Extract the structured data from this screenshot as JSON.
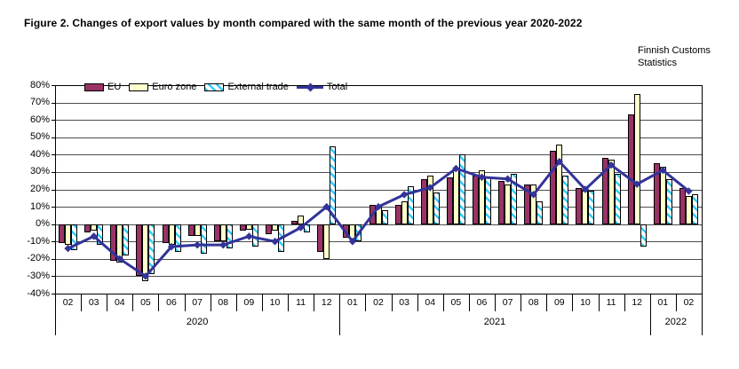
{
  "title": "Figure 2. Changes of export values by month compared with the same month of the previous year 2020-2022",
  "source": "Finnish Customs\nStatistics",
  "chart_data": {
    "type": "bar",
    "subtype": "grouped-bars-with-line-overlay",
    "title": "Changes of export values by month compared with the same month of the previous year 2020-2022",
    "categories": [
      "02",
      "03",
      "04",
      "05",
      "06",
      "07",
      "08",
      "09",
      "10",
      "11",
      "12",
      "01",
      "02",
      "03",
      "04",
      "05",
      "06",
      "07",
      "08",
      "09",
      "10",
      "11",
      "12",
      "01",
      "02"
    ],
    "year_groups": [
      {
        "label": "2020",
        "count": 11
      },
      {
        "label": "2021",
        "count": 12
      },
      {
        "label": "2022",
        "count": 2
      }
    ],
    "series": [
      {
        "name": "EU",
        "type": "bar",
        "color": "#993366",
        "values": [
          -11,
          -5,
          -21,
          -30,
          -11,
          -7,
          -10,
          -4,
          -6,
          2,
          -16,
          -8,
          11,
          11,
          26,
          27,
          28,
          25,
          23,
          42,
          21,
          38,
          63,
          35,
          21
        ]
      },
      {
        "name": "Euro zone",
        "type": "bar",
        "color": "#FFFFCC",
        "values": [
          -12,
          -4,
          -22,
          -33,
          -12,
          -7,
          -10,
          -3,
          -4,
          5,
          -20,
          -9,
          10,
          13,
          28,
          32,
          31,
          23,
          23,
          46,
          19,
          37,
          75,
          33,
          16
        ]
      },
      {
        "name": "External trade",
        "type": "bar",
        "color": "#33CCFF",
        "hatch": true,
        "values": [
          -15,
          -12,
          -18,
          -29,
          -16,
          -17,
          -14,
          -13,
          -16,
          -5,
          45,
          -10,
          8,
          22,
          18,
          40,
          27,
          29,
          13,
          28,
          19,
          29,
          -13,
          26,
          17
        ]
      },
      {
        "name": "Total",
        "type": "line",
        "color": "#333399",
        "values": [
          -14,
          -7,
          -20,
          -30,
          -13,
          -12,
          -12,
          -7,
          -10,
          -2,
          10,
          -10,
          10,
          17,
          21,
          32,
          27,
          26,
          17,
          36,
          20,
          34,
          23,
          31,
          19
        ]
      }
    ],
    "ylim": [
      -40,
      80
    ],
    "y_tick_step": 10,
    "y_tick_format": "percent",
    "grid": true,
    "legend_position": "top-inside-left"
  }
}
